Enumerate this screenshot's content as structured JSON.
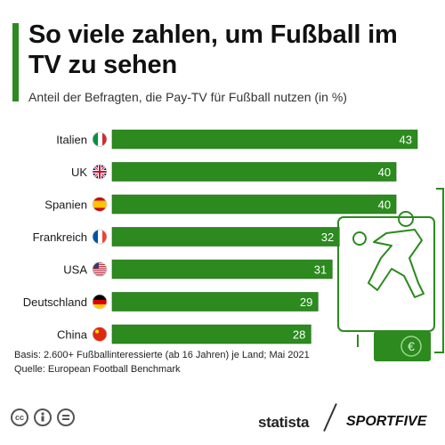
{
  "header": {
    "title": "So viele zahlen, um Fußball im TV zu sehen",
    "subtitle": "Anteil der Befragten, die Pay-TV für Fußball nutzen (in %)"
  },
  "colors": {
    "bar": "#2c8a1f",
    "bar_border": "#1e6b14",
    "accent": "#2c8a1f",
    "illustration": "#2c8a1f"
  },
  "chart_data": {
    "type": "bar",
    "orientation": "horizontal",
    "categories": [
      "Italien",
      "UK",
      "Spanien",
      "Frankreich",
      "USA",
      "Deutschland",
      "China"
    ],
    "values": [
      43,
      40,
      40,
      32,
      31,
      29,
      28
    ],
    "flags": [
      "italy-flag-icon",
      "uk-flag-icon",
      "spain-flag-icon",
      "france-flag-icon",
      "usa-flag-icon",
      "germany-flag-icon",
      "china-flag-icon"
    ],
    "title": "So viele zahlen, um Fußball im TV zu sehen",
    "xlabel": "",
    "ylabel": "",
    "xlim": [
      0,
      43
    ],
    "data_labels": true,
    "grid": false
  },
  "footer": {
    "source_basis": "Basis: 2.600+ Fußballinteressierte (ab 16 Jahren) je Land; Mai 2021",
    "source_quelle": "Quelle: European Football Benchmark",
    "brand": "statista",
    "partner": "SPORTFIVE",
    "license_icons": [
      "cc-icon",
      "attribution-icon",
      "no-derivatives-icon"
    ]
  },
  "illustration": {
    "icons": [
      "tv-icon",
      "football-player-icon",
      "euro-bill-icon"
    ],
    "euro_symbol": "€"
  }
}
